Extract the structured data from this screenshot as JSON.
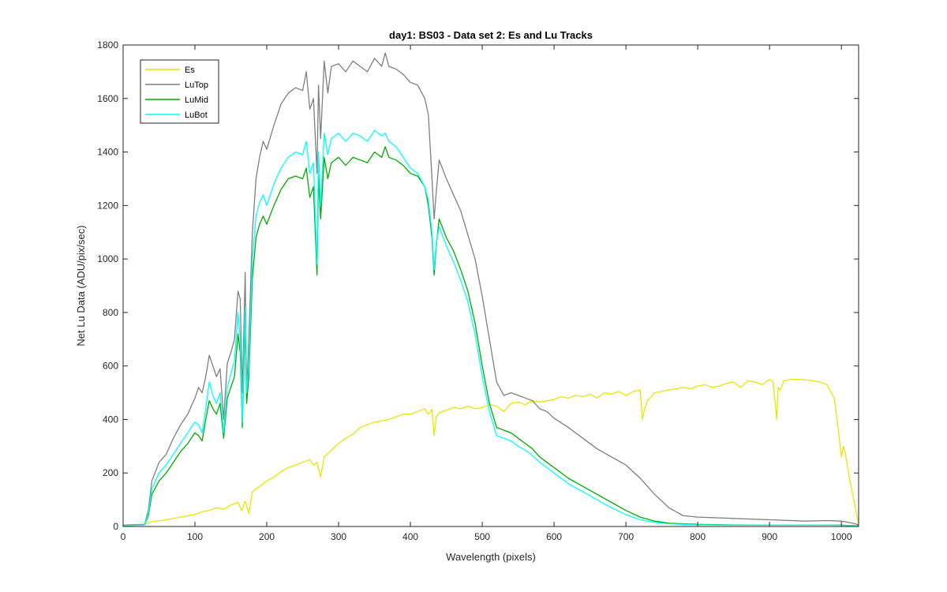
{
  "chart_data": {
    "type": "line",
    "title": "day1: BS03 - Data set 2: Es and Lu Tracks",
    "xlabel": "Wavelength (pixels)",
    "ylabel": "Net Lu Data (ADU/pix/sec)",
    "xlim": [
      0,
      1024
    ],
    "ylim": [
      0,
      1800
    ],
    "xticks": [
      "0",
      "100",
      "200",
      "300",
      "400",
      "500",
      "600",
      "700",
      "800",
      "900",
      "1000"
    ],
    "yticks": [
      "0",
      "200",
      "400",
      "600",
      "800",
      "1000",
      "1200",
      "1400",
      "1600",
      "1800"
    ],
    "grid": false,
    "legend_position": "top-left",
    "series": [
      {
        "name": "Es",
        "color": "#e6e600",
        "x": [
          0,
          30,
          40,
          60,
          80,
          100,
          110,
          120,
          130,
          140,
          150,
          160,
          165,
          170,
          175,
          180,
          190,
          200,
          210,
          220,
          230,
          240,
          250,
          260,
          265,
          270,
          275,
          280,
          290,
          300,
          310,
          320,
          330,
          340,
          350,
          360,
          370,
          380,
          390,
          400,
          410,
          420,
          425,
          430,
          433,
          436,
          440,
          450,
          460,
          470,
          480,
          490,
          500,
          510,
          520,
          530,
          540,
          550,
          560,
          570,
          580,
          590,
          600,
          610,
          620,
          630,
          640,
          650,
          660,
          670,
          680,
          690,
          700,
          710,
          720,
          723,
          726,
          730,
          740,
          750,
          760,
          770,
          780,
          790,
          800,
          810,
          820,
          830,
          840,
          850,
          860,
          870,
          880,
          890,
          900,
          905,
          910,
          912,
          915,
          920,
          930,
          940,
          950,
          960,
          970,
          980,
          990,
          995,
          1000,
          1003,
          1005,
          1010,
          1015,
          1020,
          1024
        ],
        "y": [
          5,
          8,
          18,
          25,
          35,
          45,
          55,
          60,
          70,
          65,
          80,
          90,
          60,
          95,
          50,
          130,
          150,
          170,
          185,
          205,
          220,
          230,
          240,
          250,
          230,
          240,
          185,
          260,
          285,
          310,
          330,
          345,
          370,
          380,
          390,
          395,
          400,
          410,
          420,
          420,
          430,
          440,
          420,
          438,
          340,
          410,
          425,
          435,
          445,
          440,
          450,
          440,
          445,
          455,
          450,
          430,
          460,
          465,
          455,
          470,
          465,
          470,
          475,
          485,
          480,
          490,
          485,
          495,
          480,
          500,
          495,
          505,
          490,
          505,
          510,
          400,
          440,
          470,
          500,
          505,
          510,
          515,
          520,
          515,
          525,
          530,
          520,
          525,
          535,
          540,
          520,
          545,
          540,
          530,
          550,
          540,
          400,
          520,
          510,
          545,
          550,
          550,
          548,
          545,
          540,
          530,
          480,
          380,
          260,
          300,
          280,
          200,
          130,
          60,
          10
        ]
      },
      {
        "name": "LuTop",
        "color": "#7f7f7f",
        "x": [
          0,
          30,
          35,
          40,
          50,
          60,
          70,
          80,
          90,
          100,
          105,
          110,
          115,
          120,
          125,
          130,
          135,
          140,
          145,
          150,
          155,
          160,
          163,
          166,
          170,
          172,
          175,
          180,
          185,
          190,
          195,
          200,
          210,
          220,
          230,
          240,
          250,
          255,
          260,
          265,
          270,
          272,
          275,
          280,
          285,
          290,
          300,
          310,
          320,
          330,
          340,
          350,
          360,
          365,
          370,
          380,
          390,
          400,
          410,
          420,
          425,
          430,
          433,
          436,
          440,
          450,
          460,
          470,
          480,
          490,
          500,
          510,
          520,
          530,
          540,
          550,
          560,
          570,
          580,
          590,
          600,
          620,
          640,
          660,
          680,
          700,
          720,
          740,
          760,
          780,
          800,
          850,
          900,
          950,
          980,
          1000,
          1010,
          1020,
          1024
        ],
        "y": [
          5,
          8,
          60,
          170,
          240,
          270,
          330,
          380,
          420,
          480,
          520,
          500,
          560,
          640,
          600,
          560,
          590,
          400,
          610,
          650,
          700,
          880,
          850,
          500,
          950,
          500,
          700,
          1100,
          1300,
          1380,
          1440,
          1410,
          1500,
          1580,
          1620,
          1640,
          1630,
          1700,
          1560,
          1600,
          1320,
          1650,
          1450,
          1740,
          1620,
          1720,
          1730,
          1700,
          1740,
          1720,
          1700,
          1750,
          1720,
          1770,
          1720,
          1710,
          1690,
          1660,
          1650,
          1600,
          1540,
          1300,
          1150,
          1250,
          1370,
          1300,
          1240,
          1180,
          1090,
          1000,
          860,
          700,
          540,
          490,
          500,
          490,
          480,
          470,
          440,
          430,
          405,
          370,
          330,
          290,
          260,
          230,
          180,
          120,
          70,
          40,
          35,
          30,
          25,
          20,
          22,
          20,
          15,
          10,
          5
        ]
      },
      {
        "name": "LuMid",
        "color": "#00aa00",
        "x": [
          0,
          30,
          35,
          40,
          50,
          60,
          70,
          80,
          90,
          100,
          105,
          110,
          115,
          120,
          125,
          130,
          135,
          140,
          145,
          150,
          155,
          160,
          163,
          166,
          170,
          172,
          175,
          180,
          185,
          190,
          195,
          200,
          210,
          220,
          230,
          240,
          250,
          255,
          260,
          265,
          270,
          272,
          275,
          280,
          285,
          290,
          300,
          310,
          320,
          330,
          340,
          350,
          360,
          365,
          370,
          380,
          390,
          400,
          410,
          420,
          425,
          430,
          433,
          436,
          440,
          450,
          460,
          470,
          480,
          490,
          500,
          510,
          520,
          530,
          540,
          550,
          560,
          570,
          580,
          590,
          600,
          620,
          640,
          660,
          680,
          700,
          720,
          740,
          760,
          780,
          800,
          850,
          900,
          950,
          980,
          1000,
          1010,
          1020,
          1024
        ],
        "y": [
          3,
          6,
          40,
          120,
          170,
          200,
          240,
          280,
          310,
          350,
          340,
          320,
          400,
          470,
          440,
          420,
          460,
          330,
          480,
          520,
          560,
          720,
          650,
          370,
          760,
          460,
          560,
          930,
          1080,
          1130,
          1160,
          1130,
          1200,
          1260,
          1300,
          1310,
          1300,
          1340,
          1230,
          1270,
          940,
          1310,
          1150,
          1380,
          1300,
          1360,
          1380,
          1350,
          1380,
          1370,
          1360,
          1400,
          1380,
          1420,
          1380,
          1370,
          1350,
          1320,
          1310,
          1270,
          1200,
          1080,
          940,
          1050,
          1150,
          1080,
          1030,
          960,
          880,
          760,
          600,
          460,
          370,
          360,
          350,
          330,
          310,
          290,
          260,
          240,
          220,
          180,
          150,
          120,
          90,
          60,
          35,
          20,
          12,
          10,
          8,
          6,
          5,
          5,
          5,
          5,
          4,
          3,
          2
        ]
      },
      {
        "name": "LuBot",
        "color": "#00ffff",
        "x": [
          0,
          30,
          35,
          40,
          50,
          60,
          70,
          80,
          90,
          100,
          105,
          110,
          115,
          120,
          125,
          130,
          135,
          140,
          145,
          150,
          155,
          160,
          163,
          166,
          170,
          172,
          175,
          180,
          185,
          190,
          195,
          200,
          210,
          220,
          230,
          240,
          250,
          255,
          260,
          265,
          270,
          272,
          275,
          280,
          285,
          290,
          300,
          310,
          320,
          330,
          340,
          350,
          360,
          365,
          370,
          380,
          390,
          400,
          410,
          420,
          425,
          430,
          433,
          436,
          440,
          450,
          460,
          470,
          480,
          490,
          500,
          510,
          520,
          530,
          540,
          550,
          560,
          570,
          580,
          590,
          600,
          620,
          640,
          660,
          680,
          700,
          720,
          740,
          760,
          780,
          800,
          850,
          900,
          950,
          980,
          1000,
          1010,
          1020,
          1024
        ],
        "y": [
          3,
          6,
          50,
          140,
          200,
          230,
          270,
          310,
          350,
          390,
          380,
          350,
          440,
          540,
          490,
          460,
          500,
          350,
          520,
          570,
          620,
          800,
          700,
          390,
          820,
          500,
          600,
          1000,
          1160,
          1210,
          1240,
          1200,
          1280,
          1340,
          1380,
          1400,
          1390,
          1440,
          1320,
          1360,
          980,
          1400,
          1200,
          1470,
          1390,
          1450,
          1470,
          1440,
          1470,
          1460,
          1440,
          1480,
          1460,
          1470,
          1440,
          1420,
          1380,
          1340,
          1320,
          1270,
          1220,
          1100,
          960,
          1060,
          1120,
          1050,
          990,
          920,
          840,
          720,
          560,
          430,
          340,
          330,
          320,
          300,
          285,
          265,
          240,
          220,
          200,
          160,
          130,
          100,
          70,
          45,
          25,
          15,
          10,
          8,
          6,
          5,
          5,
          5,
          5,
          4,
          3,
          2,
          1
        ]
      }
    ]
  }
}
